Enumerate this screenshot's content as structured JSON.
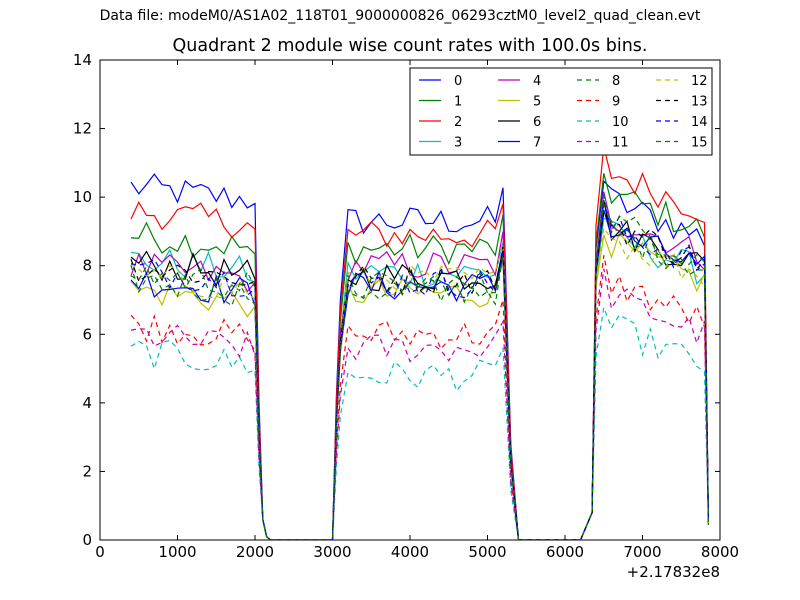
{
  "suptitle": "Data file: modeM0/AS1A02_118T01_9000000826_06293cztM0_level2_quad_clean.evt",
  "chart_data": {
    "type": "line",
    "title": "Quadrant 2 module wise count rates with 100.0s bins.",
    "xlabel": "",
    "ylabel": "",
    "xlim": [
      0,
      8000
    ],
    "ylim": [
      0,
      14
    ],
    "x_offset_label": "+2.17832e8",
    "xticks": [
      0,
      1000,
      2000,
      3000,
      4000,
      5000,
      6000,
      7000,
      8000
    ],
    "xtick_labels": [
      "0",
      "1000",
      "2000",
      "3000",
      "4000",
      "5000",
      "6000",
      "7000",
      "8000"
    ],
    "yticks": [
      0,
      2,
      4,
      6,
      8,
      10,
      12,
      14
    ],
    "ytick_labels": [
      "0",
      "2",
      "4",
      "6",
      "8",
      "10",
      "12",
      "14"
    ],
    "grid": false,
    "legend": {
      "position": "top-right",
      "columns": 4
    },
    "segments": [
      {
        "start": 400,
        "step": 100,
        "count": 17
      },
      {
        "start": 2100,
        "step": 100,
        "count": 9
      },
      {
        "start": 3000,
        "step": 100,
        "count": 23
      },
      {
        "start": 5300,
        "step": 100,
        "count": 9
      },
      {
        "start": 6200,
        "step": 100,
        "count": 17
      }
    ],
    "series": [
      {
        "name": "0",
        "color": "#0000ff",
        "dash": "solid",
        "levels": [
          10.3,
          9.3,
          10.0
        ]
      },
      {
        "name": "1",
        "color": "#008000",
        "dash": "solid",
        "levels": [
          8.9,
          8.5,
          10.2
        ]
      },
      {
        "name": "2",
        "color": "#ff0000",
        "dash": "solid",
        "levels": [
          9.6,
          8.9,
          10.8
        ]
      },
      {
        "name": "3",
        "color": "#00bfbf",
        "dash": "solid",
        "levels": [
          8.2,
          7.8,
          9.0
        ]
      },
      {
        "name": "4",
        "color": "#bf00bf",
        "dash": "solid",
        "levels": [
          8.0,
          8.0,
          9.5
        ]
      },
      {
        "name": "5",
        "color": "#bfbf00",
        "dash": "solid",
        "levels": [
          7.3,
          7.2,
          8.7
        ]
      },
      {
        "name": "6",
        "color": "#000000",
        "dash": "solid",
        "levels": [
          8.1,
          7.7,
          9.2
        ]
      },
      {
        "name": "7",
        "color": "#0000ff",
        "dash": "solid",
        "levels": [
          7.6,
          7.4,
          9.1
        ]
      },
      {
        "name": "8",
        "color": "#008000",
        "dash": "dashed",
        "levels": [
          7.6,
          7.3,
          9.1
        ]
      },
      {
        "name": "9",
        "color": "#ff0000",
        "dash": "dashed",
        "levels": [
          6.3,
          6.0,
          7.6
        ]
      },
      {
        "name": "10",
        "color": "#00bfbf",
        "dash": "dashed",
        "levels": [
          5.5,
          4.8,
          6.3
        ]
      },
      {
        "name": "11",
        "color": "#bf00bf",
        "dash": "dashed",
        "levels": [
          6.0,
          5.6,
          7.2
        ]
      },
      {
        "name": "12",
        "color": "#bfbf00",
        "dash": "dashed",
        "levels": [
          7.7,
          7.6,
          8.9
        ]
      },
      {
        "name": "13",
        "color": "#000000",
        "dash": "dashed",
        "levels": [
          8.0,
          7.6,
          9.3
        ]
      },
      {
        "name": "14",
        "color": "#0000ff",
        "dash": "dashed",
        "levels": [
          7.9,
          7.5,
          9.2
        ]
      },
      {
        "name": "15",
        "color": "#008000",
        "dash": "dashed",
        "levels": [
          7.8,
          7.4,
          9.4
        ]
      }
    ]
  }
}
